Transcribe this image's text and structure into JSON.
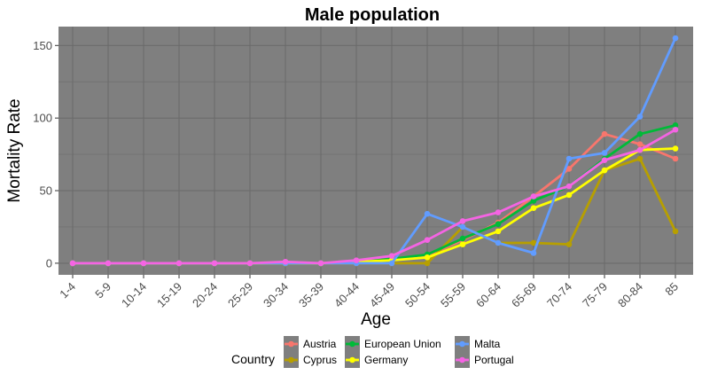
{
  "chart_data": {
    "type": "line",
    "title": "Male population",
    "xlabel": "Age",
    "ylabel": "Mortality Rate",
    "categories": [
      "1-4",
      "5-9",
      "10-14",
      "15-19",
      "20-24",
      "25-29",
      "30-34",
      "35-39",
      "40-44",
      "45-49",
      "50-54",
      "55-59",
      "60-64",
      "65-69",
      "70-74",
      "75-79",
      "80-84",
      "85"
    ],
    "y_ticks": [
      "0",
      "50",
      "100",
      "150"
    ],
    "ylim": [
      -8,
      163
    ],
    "legend_title": "Country",
    "legend_position": "bottom",
    "grid": true,
    "panel_background": "#7f7f7f",
    "grid_color": "#6b6b6b",
    "series": [
      {
        "name": "Austria",
        "color": "#f8766d",
        "values": [
          0,
          0,
          0,
          0,
          0,
          0,
          0,
          0,
          0,
          3,
          5,
          16,
          28,
          46,
          65,
          89,
          82,
          72
        ]
      },
      {
        "name": "Cyprus",
        "color": "#b79f00",
        "values": [
          0,
          0,
          0,
          0,
          0,
          0,
          0,
          0,
          0,
          0,
          0,
          25,
          14,
          14,
          13,
          64,
          72,
          22
        ]
      },
      {
        "name": "European Union",
        "color": "#00ba38",
        "values": [
          0,
          0,
          0,
          0,
          0,
          0,
          0,
          0,
          1,
          3,
          6,
          17,
          27,
          43,
          53,
          72,
          89,
          95
        ]
      },
      {
        "name": "Germany",
        "color": "#ffff00",
        "values": [
          0,
          0,
          0,
          0,
          0,
          0,
          0,
          0,
          1,
          2,
          4,
          13,
          22,
          38,
          47,
          64,
          78,
          79
        ]
      },
      {
        "name": "Malta",
        "color": "#619cff",
        "values": [
          0,
          0,
          0,
          0,
          0,
          0,
          0,
          0,
          0,
          0,
          34,
          25,
          14,
          7,
          72,
          76,
          101,
          155
        ]
      },
      {
        "name": "Portugal",
        "color": "#f564e3",
        "values": [
          0,
          0,
          0,
          0,
          0,
          0,
          1,
          0,
          2,
          5,
          16,
          29,
          35,
          46,
          53,
          71,
          78,
          92
        ]
      }
    ]
  }
}
